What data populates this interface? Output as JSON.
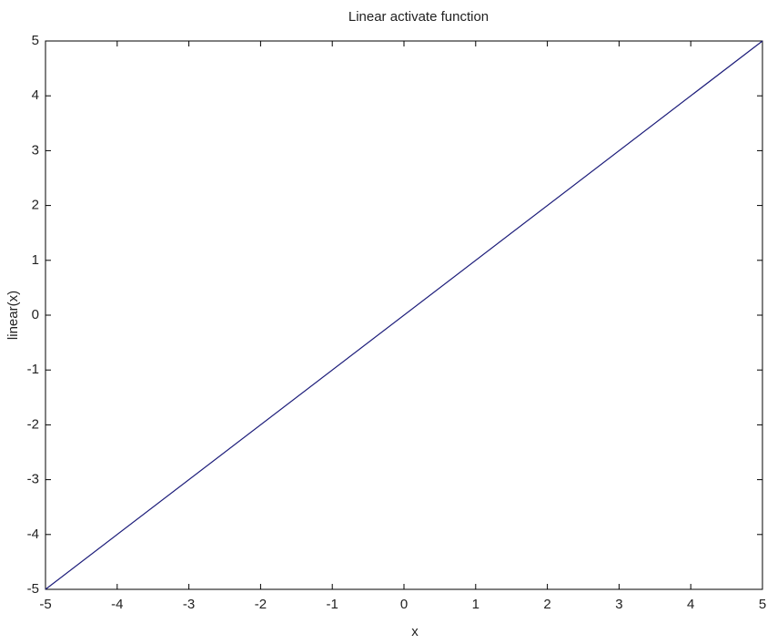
{
  "chart_data": {
    "type": "line",
    "title": "Linear activate function",
    "xlabel": "x",
    "ylabel": "linear(x)",
    "x": [
      -5,
      5
    ],
    "values": [
      -5,
      5
    ],
    "color": "#1c1c7a",
    "xlim": [
      -5,
      5
    ],
    "ylim": [
      -5,
      5
    ],
    "xticks": [
      -5,
      -4,
      -3,
      -2,
      -1,
      0,
      1,
      2,
      3,
      4,
      5
    ],
    "yticks": [
      -5,
      -4,
      -3,
      -2,
      -1,
      0,
      1,
      2,
      3,
      4,
      5
    ],
    "grid": false
  }
}
